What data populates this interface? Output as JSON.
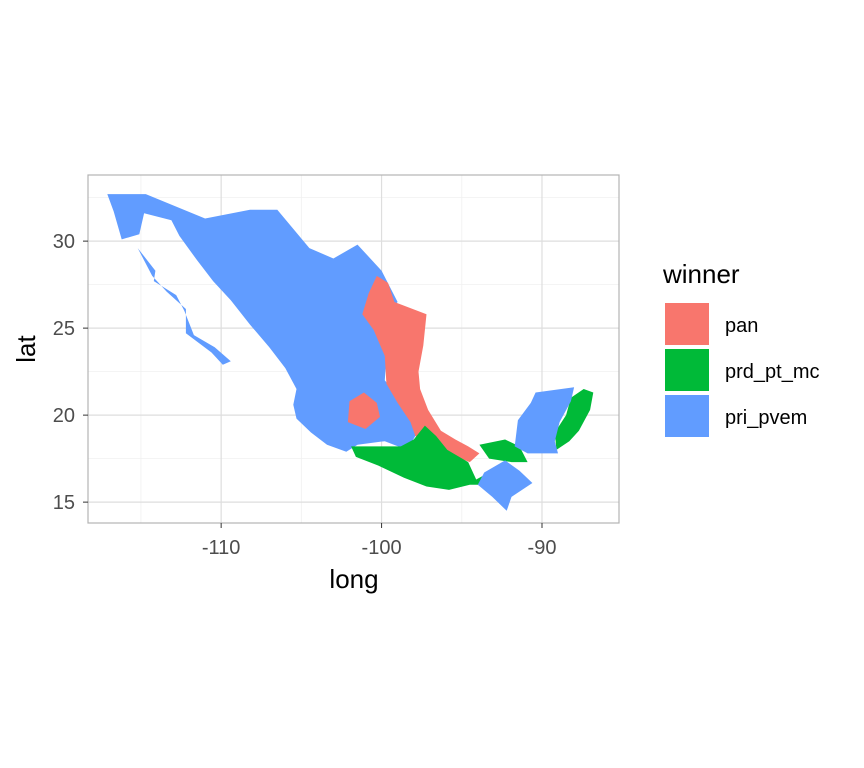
{
  "chart_data": {
    "type": "choropleth",
    "xlabel": "long",
    "ylabel": "lat",
    "xlim": [
      -118.3,
      -85.2
    ],
    "ylim": [
      13.8,
      33.8
    ],
    "x_ticks": [
      -110,
      -100,
      -90
    ],
    "y_ticks": [
      15,
      20,
      25,
      30
    ],
    "x_tick_labels": [
      "-110",
      "-100",
      "-90"
    ],
    "y_tick_labels": [
      "15",
      "20",
      "25",
      "30"
    ],
    "grid": true,
    "legend": {
      "title": "winner",
      "position": "right",
      "entries": [
        {
          "label": "pan",
          "color": "#F8766D"
        },
        {
          "label": "prd_pt_mc",
          "color": "#00BA38"
        },
        {
          "label": "pri_pvem",
          "color": "#619CFF"
        }
      ]
    },
    "regions": [
      {
        "winner": "pri_pvem",
        "coords": [
          [
            -117.1,
            32.7
          ],
          [
            -114.7,
            32.7
          ],
          [
            -111.0,
            31.3
          ],
          [
            -108.2,
            31.8
          ],
          [
            -106.5,
            31.8
          ],
          [
            -104.5,
            29.6
          ],
          [
            -103.0,
            29.0
          ],
          [
            -101.5,
            29.8
          ],
          [
            -100.0,
            28.3
          ],
          [
            -99.0,
            26.5
          ],
          [
            -99.5,
            26.0
          ],
          [
            -100.3,
            25.0
          ],
          [
            -99.7,
            23.5
          ],
          [
            -99.8,
            22.0
          ],
          [
            -99.0,
            21.1
          ],
          [
            -98.0,
            20.3
          ],
          [
            -97.5,
            19.5
          ],
          [
            -97.9,
            18.8
          ],
          [
            -98.4,
            18.0
          ],
          [
            -99.8,
            18.5
          ],
          [
            -101.5,
            18.3
          ],
          [
            -102.2,
            17.9
          ],
          [
            -103.4,
            18.3
          ],
          [
            -104.4,
            19.0
          ],
          [
            -105.3,
            19.8
          ],
          [
            -105.5,
            20.6
          ],
          [
            -105.3,
            21.5
          ],
          [
            -106.0,
            22.7
          ],
          [
            -107.0,
            23.9
          ],
          [
            -108.2,
            25.2
          ],
          [
            -109.4,
            26.6
          ],
          [
            -110.5,
            27.7
          ],
          [
            -111.5,
            28.9
          ],
          [
            -112.6,
            30.3
          ],
          [
            -113.1,
            31.2
          ],
          [
            -114.8,
            31.6
          ],
          [
            -115.1,
            30.4
          ],
          [
            -116.2,
            30.1
          ],
          [
            -116.7,
            31.7
          ]
        ]
      },
      {
        "winner": "pri_pvem",
        "coords": [
          [
            -115.2,
            29.6
          ],
          [
            -114.1,
            28.3
          ],
          [
            -114.2,
            27.7
          ],
          [
            -112.8,
            26.9
          ],
          [
            -112.3,
            26.0
          ],
          [
            -111.7,
            24.6
          ],
          [
            -110.4,
            23.9
          ],
          [
            -109.4,
            23.1
          ],
          [
            -109.9,
            22.9
          ],
          [
            -110.6,
            23.6
          ],
          [
            -112.2,
            24.7
          ],
          [
            -112.2,
            26.1
          ],
          [
            -113.4,
            27.1
          ],
          [
            -114.3,
            28.0
          ]
        ]
      },
      {
        "winner": "pan",
        "coords": [
          [
            -100.3,
            28.0
          ],
          [
            -99.6,
            27.6
          ],
          [
            -99.2,
            26.5
          ],
          [
            -97.2,
            25.8
          ],
          [
            -97.4,
            24.0
          ],
          [
            -97.7,
            22.5
          ],
          [
            -97.6,
            21.5
          ],
          [
            -97.1,
            20.3
          ],
          [
            -96.3,
            19.1
          ],
          [
            -95.4,
            18.6
          ],
          [
            -94.6,
            18.2
          ],
          [
            -93.9,
            17.8
          ],
          [
            -94.5,
            17.3
          ],
          [
            -95.9,
            17.8
          ],
          [
            -97.0,
            18.3
          ],
          [
            -97.9,
            18.8
          ],
          [
            -98.2,
            19.6
          ],
          [
            -99.0,
            20.7
          ],
          [
            -99.7,
            21.8
          ],
          [
            -99.8,
            23.4
          ],
          [
            -100.5,
            24.9
          ],
          [
            -101.2,
            25.8
          ],
          [
            -100.8,
            27.0
          ]
        ]
      },
      {
        "winner": "pan",
        "coords": [
          [
            -102.0,
            20.8
          ],
          [
            -101.1,
            21.3
          ],
          [
            -100.3,
            20.7
          ],
          [
            -100.1,
            19.9
          ],
          [
            -101.0,
            19.2
          ],
          [
            -102.1,
            19.6
          ]
        ]
      },
      {
        "winner": "prd_pt_mc",
        "coords": [
          [
            -101.9,
            18.2
          ],
          [
            -100.5,
            18.2
          ],
          [
            -98.8,
            18.2
          ],
          [
            -98.0,
            18.6
          ],
          [
            -97.3,
            19.4
          ],
          [
            -96.6,
            18.8
          ],
          [
            -95.9,
            18.0
          ],
          [
            -94.6,
            17.3
          ],
          [
            -94.1,
            16.3
          ],
          [
            -93.5,
            16.6
          ],
          [
            -92.9,
            16.0
          ],
          [
            -94.5,
            16.0
          ],
          [
            -95.8,
            15.7
          ],
          [
            -97.2,
            15.9
          ],
          [
            -98.6,
            16.4
          ],
          [
            -100.2,
            17.1
          ],
          [
            -101.6,
            17.6
          ]
        ]
      },
      {
        "winner": "prd_pt_mc",
        "coords": [
          [
            -93.9,
            18.3
          ],
          [
            -92.3,
            18.6
          ],
          [
            -91.4,
            18.2
          ],
          [
            -90.9,
            17.3
          ],
          [
            -91.9,
            17.3
          ],
          [
            -93.3,
            17.5
          ]
        ]
      },
      {
        "winner": "prd_pt_mc",
        "coords": [
          [
            -87.4,
            21.5
          ],
          [
            -86.8,
            21.3
          ],
          [
            -87.0,
            20.3
          ],
          [
            -87.7,
            19.1
          ],
          [
            -88.3,
            18.5
          ],
          [
            -89.1,
            18.0
          ],
          [
            -89.2,
            19.0
          ],
          [
            -88.5,
            20.0
          ],
          [
            -88.2,
            21.0
          ]
        ]
      },
      {
        "winner": "pri_pvem",
        "coords": [
          [
            -90.4,
            21.3
          ],
          [
            -88.0,
            21.6
          ],
          [
            -88.2,
            20.8
          ],
          [
            -88.9,
            19.6
          ],
          [
            -89.2,
            18.5
          ],
          [
            -89.0,
            17.8
          ],
          [
            -90.9,
            17.8
          ],
          [
            -91.7,
            18.2
          ],
          [
            -91.5,
            19.7
          ],
          [
            -90.7,
            20.7
          ]
        ]
      },
      {
        "winner": "pri_pvem",
        "coords": [
          [
            -93.6,
            16.7
          ],
          [
            -92.3,
            17.4
          ],
          [
            -91.4,
            16.8
          ],
          [
            -90.6,
            16.1
          ],
          [
            -91.9,
            15.3
          ],
          [
            -92.2,
            14.5
          ],
          [
            -93.1,
            15.3
          ],
          [
            -94.0,
            16.0
          ]
        ]
      }
    ]
  }
}
